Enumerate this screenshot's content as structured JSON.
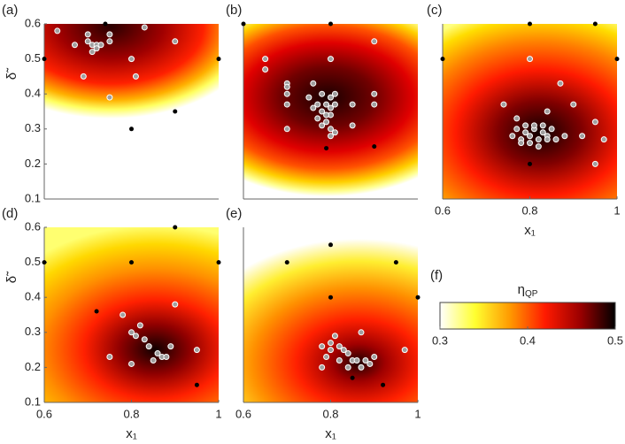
{
  "chart_data": [
    {
      "type": "scatter",
      "label": "(a)",
      "ylabel": "δ̃",
      "xlim": [
        0.6,
        1
      ],
      "ylim": [
        0.1,
        0.6
      ],
      "yticks": [
        0.1,
        0.2,
        0.3,
        0.4,
        0.5,
        0.6
      ],
      "series": [
        {
          "color": "#000000",
          "x": [
            0.6,
            0.74,
            0.8,
            0.9,
            1.0
          ],
          "y": [
            0.5,
            0.6,
            0.3,
            0.35,
            0.5
          ]
        },
        {
          "color": "#a0a0a0",
          "edgecolor": "#ffffff",
          "x": [
            0.63,
            0.67,
            0.7,
            0.7,
            0.71,
            0.72,
            0.72,
            0.71,
            0.73,
            0.75,
            0.75,
            0.69,
            0.75,
            0.8,
            0.81,
            0.83,
            0.9
          ],
          "y": [
            0.58,
            0.54,
            0.57,
            0.55,
            0.54,
            0.54,
            0.53,
            0.52,
            0.54,
            0.57,
            0.55,
            0.45,
            0.39,
            0.5,
            0.45,
            0.59,
            0.55
          ]
        }
      ]
    },
    {
      "type": "scatter",
      "label": "(b)",
      "xlim": [
        0.6,
        1
      ],
      "ylim": [
        0.1,
        0.6
      ],
      "series": [
        {
          "color": "#000000",
          "x": [
            0.6,
            0.8,
            0.79,
            0.9
          ],
          "y": [
            0.6,
            0.6,
            0.245,
            0.25
          ]
        },
        {
          "color": "#a0a0a0",
          "edgecolor": "#ffffff",
          "x": [
            0.65,
            0.65,
            0.7,
            0.7,
            0.7,
            0.7,
            0.7,
            0.75,
            0.76,
            0.77,
            0.77,
            0.78,
            0.78,
            0.79,
            0.79,
            0.8,
            0.8,
            0.8,
            0.81,
            0.81,
            0.76,
            0.78,
            0.8,
            0.8,
            0.79,
            0.9,
            0.9,
            0.9,
            0.85,
            0.85,
            0.8,
            0.81
          ],
          "y": [
            0.5,
            0.47,
            0.43,
            0.42,
            0.4,
            0.37,
            0.3,
            0.39,
            0.36,
            0.33,
            0.37,
            0.4,
            0.35,
            0.37,
            0.32,
            0.36,
            0.39,
            0.34,
            0.37,
            0.4,
            0.43,
            0.31,
            0.28,
            0.3,
            0.34,
            0.55,
            0.4,
            0.37,
            0.37,
            0.31,
            0.5,
            0.29
          ]
        }
      ]
    },
    {
      "type": "scatter",
      "label": "(c)",
      "xlabel": "x₁",
      "xlim": [
        0.6,
        1
      ],
      "ylim": [
        0.1,
        0.6
      ],
      "xticks": [
        0.6,
        0.8,
        1
      ],
      "series": [
        {
          "color": "#000000",
          "x": [
            0.6,
            0.8,
            0.95,
            1.0,
            0.8
          ],
          "y": [
            0.5,
            0.6,
            0.6,
            0.5,
            0.2
          ]
        },
        {
          "color": "#a0a0a0",
          "edgecolor": "#ffffff",
          "x": [
            0.87,
            0.84,
            0.9,
            0.97,
            0.95,
            0.8,
            0.74,
            0.77,
            0.95,
            0.76,
            0.77,
            0.78,
            0.79,
            0.8,
            0.81,
            0.82,
            0.83,
            0.84,
            0.85,
            0.86,
            0.78,
            0.8,
            0.82,
            0.84,
            0.79,
            0.81,
            0.83,
            0.88,
            0.92
          ],
          "y": [
            0.43,
            0.35,
            0.37,
            0.27,
            0.32,
            0.5,
            0.37,
            0.33,
            0.2,
            0.28,
            0.3,
            0.27,
            0.29,
            0.28,
            0.3,
            0.27,
            0.29,
            0.28,
            0.3,
            0.27,
            0.26,
            0.26,
            0.25,
            0.27,
            0.31,
            0.31,
            0.31,
            0.28,
            0.28
          ]
        }
      ]
    },
    {
      "type": "scatter",
      "label": "(d)",
      "ylabel": "δ̃",
      "xlabel": "x₁",
      "xlim": [
        0.6,
        1
      ],
      "ylim": [
        0.1,
        0.6
      ],
      "xticks": [
        0.6,
        0.8,
        1
      ],
      "yticks": [
        0.1,
        0.2,
        0.3,
        0.4,
        0.5,
        0.6
      ],
      "series": [
        {
          "color": "#000000",
          "x": [
            0.6,
            0.8,
            0.9,
            1.0,
            0.95,
            0.72
          ],
          "y": [
            0.5,
            0.5,
            0.6,
            0.5,
            0.15,
            0.36
          ]
        },
        {
          "color": "#a0a0a0",
          "edgecolor": "#ffffff",
          "x": [
            0.78,
            0.9,
            0.8,
            0.82,
            0.81,
            0.83,
            0.84,
            0.86,
            0.87,
            0.88,
            0.89,
            0.85,
            0.95,
            0.75,
            0.8
          ],
          "y": [
            0.35,
            0.38,
            0.3,
            0.32,
            0.29,
            0.28,
            0.26,
            0.24,
            0.23,
            0.23,
            0.26,
            0.22,
            0.25,
            0.23,
            0.21
          ]
        }
      ]
    },
    {
      "type": "scatter",
      "label": "(e)",
      "xlabel": "x₁",
      "xlim": [
        0.6,
        1
      ],
      "ylim": [
        0.1,
        0.6
      ],
      "xticks": [
        0.6,
        0.8,
        1
      ],
      "series": [
        {
          "color": "#000000",
          "x": [
            0.7,
            0.8,
            0.95,
            0.8,
            1.0,
            0.85,
            0.92
          ],
          "y": [
            0.5,
            0.55,
            0.5,
            0.4,
            0.4,
            0.17,
            0.15
          ]
        },
        {
          "color": "#a0a0a0",
          "edgecolor": "#ffffff",
          "x": [
            0.81,
            0.87,
            0.78,
            0.8,
            0.82,
            0.83,
            0.84,
            0.85,
            0.86,
            0.88,
            0.89,
            0.9,
            0.79,
            0.82,
            0.84,
            0.87,
            0.97,
            0.78,
            0.8
          ],
          "y": [
            0.29,
            0.3,
            0.26,
            0.25,
            0.26,
            0.25,
            0.24,
            0.22,
            0.22,
            0.22,
            0.21,
            0.23,
            0.23,
            0.22,
            0.2,
            0.2,
            0.25,
            0.2,
            0.27
          ]
        }
      ]
    },
    {
      "type": "colorbar",
      "label": "(f)",
      "title": "η",
      "title_sub": "QP",
      "xlim": [
        0.3,
        0.5
      ],
      "xticks": [
        0.3,
        0.4,
        0.5
      ],
      "colors": [
        "#ffffff",
        "#ffff30",
        "#ff9900",
        "#ff1a00",
        "#9b0000",
        "#000000"
      ]
    }
  ]
}
